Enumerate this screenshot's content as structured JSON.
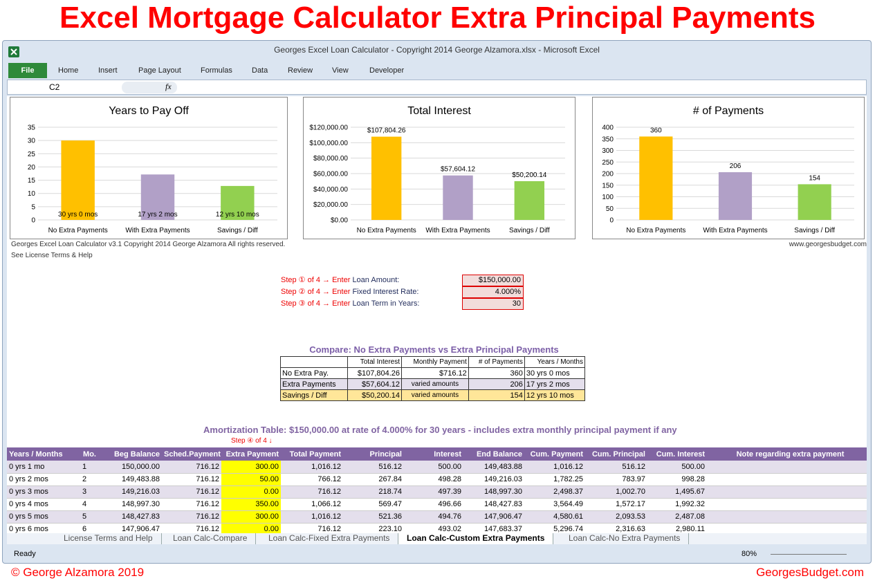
{
  "banner": {
    "title": "Excel Mortgage Calculator Extra Principal Payments",
    "author": "© George Alzamora 2019",
    "site": "GeorgesBudget.com"
  },
  "window": {
    "title": "Georges Excel Loan Calculator - Copyright 2014 George Alzamora.xlsx  -  Microsoft Excel",
    "ribbon_tabs": [
      "File",
      "Home",
      "Insert",
      "Page Layout",
      "Formulas",
      "Data",
      "Review",
      "View",
      "Developer"
    ],
    "name_box": "C2",
    "fx": "fx"
  },
  "charts": [
    {
      "type": "bar",
      "title": "Years to Pay Off",
      "categories": [
        "No Extra Payments",
        "With Extra Payments",
        "Savings / Diff"
      ],
      "values": [
        30,
        17.17,
        12.83
      ],
      "value_labels": [
        "30 yrs 0 mos",
        "17 yrs 2 mos",
        "12 yrs 10 mos"
      ],
      "colors": [
        "#ffc000",
        "#b1a0c7",
        "#92d050"
      ],
      "ylim": [
        0,
        35
      ],
      "yticks": [
        0,
        5,
        10,
        15,
        20,
        25,
        30,
        35
      ],
      "grid": true
    },
    {
      "type": "bar",
      "title": "Total Interest",
      "categories": [
        "No Extra Payments",
        "With Extra Payments",
        "Savings / Diff"
      ],
      "values": [
        107804.26,
        57604.12,
        50200.14
      ],
      "value_labels": [
        "$107,804.26",
        "$57,604.12",
        "$50,200.14"
      ],
      "colors": [
        "#ffc000",
        "#b1a0c7",
        "#92d050"
      ],
      "ylim": [
        0,
        120000
      ],
      "yticks": [
        {
          "value": 0,
          "label": "$0.00"
        },
        {
          "value": 20000,
          "label": "$20,000.00"
        },
        {
          "value": 40000,
          "label": "$40,000.00"
        },
        {
          "value": 60000,
          "label": "$60,000.00"
        },
        {
          "value": 80000,
          "label": "$80,000.00"
        },
        {
          "value": 100000,
          "label": "$100,000.00"
        },
        {
          "value": 120000,
          "label": "$120,000.00"
        }
      ],
      "grid": true
    },
    {
      "type": "bar",
      "title": "# of Payments",
      "categories": [
        "No Extra Payments",
        "With Extra Payments",
        "Savings / Diff"
      ],
      "values": [
        360,
        206,
        154
      ],
      "colors": [
        "#ffc000",
        "#b1a0c7",
        "#92d050"
      ],
      "ylim": [
        0,
        400
      ],
      "yticks": [
        0,
        50,
        100,
        150,
        200,
        250,
        300,
        350,
        400
      ],
      "grid": true
    }
  ],
  "sheet": {
    "credit": "Georges Excel Loan Calculator v3.1   Copyright 2014 George Alzamora  All rights reserved.",
    "license_link": "See License Terms & Help",
    "website": "www.georgesbudget.com",
    "steps": [
      {
        "step": "Step ① of 4 →",
        "verb": "Enter",
        "label": "Loan Amount:",
        "value": "$150,000.00"
      },
      {
        "step": "Step ② of 4 →",
        "verb": "Enter",
        "label": "Fixed Interest Rate:",
        "value": "4.000%"
      },
      {
        "step": "Step ③ of 4 →",
        "verb": "Enter",
        "label": "Loan Term in Years:",
        "value": "30"
      }
    ],
    "compare": {
      "title": "Compare: No Extra Payments vs Extra Principal Payments",
      "headers": [
        "Total Interest",
        "Monthly Payment",
        "# of Payments",
        "Years / Months"
      ],
      "rows": [
        [
          "No Extra Pay.",
          "$107,804.26",
          "$716.12",
          "360",
          "30 yrs 0 mos"
        ],
        [
          "Extra Payments",
          "$57,604.12",
          "varied amounts",
          "206",
          "17 yrs 2 mos"
        ],
        [
          "Savings / Diff",
          "$50,200.14",
          "varied amounts",
          "154",
          "12 yrs 10 mos"
        ]
      ]
    },
    "amortization": {
      "title": "Amortization Table:  $150,000.00 at rate of 4.000% for 30 years - includes extra monthly principal payment if any",
      "step": "Step ④ of 4 ↓",
      "headers": [
        "Years / Months",
        "Mo.",
        "Beg Balance",
        "Sched.Payment",
        "Extra Payment",
        "Total Payment",
        "Principal",
        "Interest",
        "End Balance",
        "Cum. Payment",
        "Cum. Principal",
        "Cum. Interest",
        "Note regarding extra payment"
      ],
      "rows": [
        [
          "0 yrs 1 mo",
          "1",
          "150,000.00",
          "716.12",
          "300.00",
          "1,016.12",
          "516.12",
          "500.00",
          "149,483.88",
          "1,016.12",
          "516.12",
          "500.00"
        ],
        [
          "0 yrs 2 mos",
          "2",
          "149,483.88",
          "716.12",
          "50.00",
          "766.12",
          "267.84",
          "498.28",
          "149,216.03",
          "1,782.25",
          "783.97",
          "998.28"
        ],
        [
          "0 yrs 3 mos",
          "3",
          "149,216.03",
          "716.12",
          "0.00",
          "716.12",
          "218.74",
          "497.39",
          "148,997.30",
          "2,498.37",
          "1,002.70",
          "1,495.67"
        ],
        [
          "0 yrs 4 mos",
          "4",
          "148,997.30",
          "716.12",
          "350.00",
          "1,066.12",
          "569.47",
          "496.66",
          "148,427.83",
          "3,564.49",
          "1,572.17",
          "1,992.32"
        ],
        [
          "0 yrs 5 mos",
          "5",
          "148,427.83",
          "716.12",
          "300.00",
          "1,016.12",
          "521.36",
          "494.76",
          "147,906.47",
          "4,580.61",
          "2,093.53",
          "2,487.08"
        ],
        [
          "0 yrs 6 mos",
          "6",
          "147,906.47",
          "716.12",
          "0.00",
          "716.12",
          "223.10",
          "493.02",
          "147,683.37",
          "5,296.74",
          "2,316.63",
          "2,980.11"
        ]
      ]
    }
  },
  "sheet_tabs": {
    "tabs": [
      "License Terms and Help",
      "Loan Calc-Compare",
      "Loan Calc-Fixed Extra Payments",
      "Loan Calc-Custom Extra Payments",
      "Loan Calc-No Extra Payments"
    ],
    "active": 3
  },
  "status_bar": {
    "status": "Ready",
    "zoom": "80%"
  }
}
